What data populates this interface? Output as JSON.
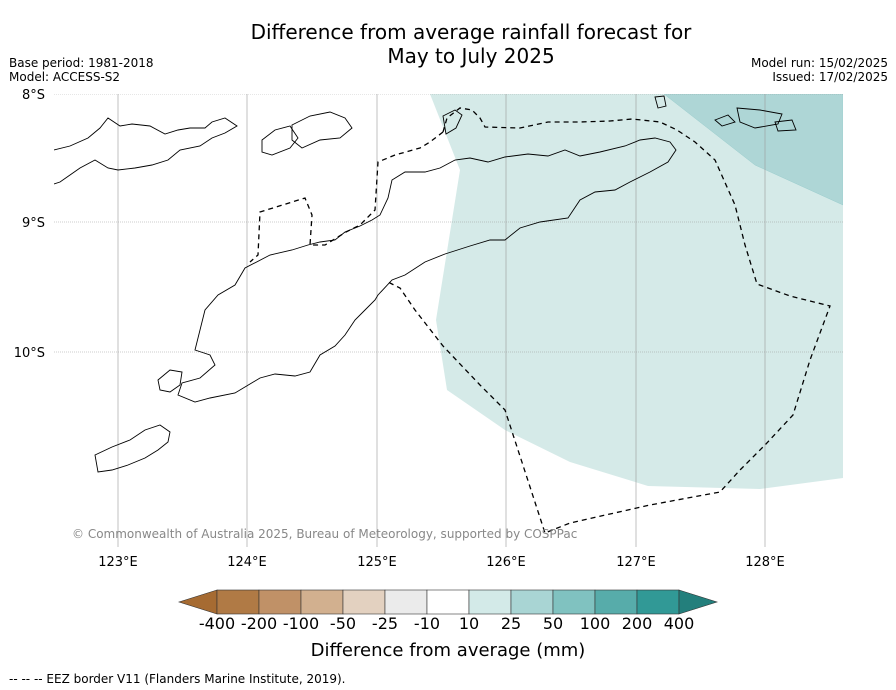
{
  "title_line1": "Difference from average rainfall forecast for",
  "title_line2": "May to July 2025",
  "meta_left": [
    "Base period: 1981-2018",
    "Model: ACCESS-S2"
  ],
  "meta_right": [
    "Model run: 15/02/2025",
    "Issued: 17/02/2025"
  ],
  "lat_labels": [
    "8°S",
    "9°S",
    "10°S"
  ],
  "lon_labels": [
    "123°E",
    "124°E",
    "125°E",
    "126°E",
    "127°E",
    "128°E"
  ],
  "copyright": "© Commonwealth of Australia 2025, Bureau of Meteorology, supported by COSPPac",
  "colorbar": {
    "title": "Difference from average (mm)",
    "labels": [
      "-400",
      "-200",
      "-100",
      "-50",
      "-25",
      "-10",
      "10",
      "25",
      "50",
      "100",
      "200",
      "400"
    ],
    "colors": [
      "#a66b32",
      "#b07a45",
      "#c09167",
      "#d2b08f",
      "#e3d1c0",
      "#ebebeb",
      "#ffffff",
      "#d3eae8",
      "#a9d5d4",
      "#80c2c0",
      "#57acaa",
      "#319996",
      "#237f7c"
    ]
  },
  "legend_footer": "--  --  -- EEZ border V11 (Flanders Marine Institute, 2019).",
  "categories": {
    "dark_teal": "#aed6d6",
    "light_teal": "#d5eae8"
  }
}
